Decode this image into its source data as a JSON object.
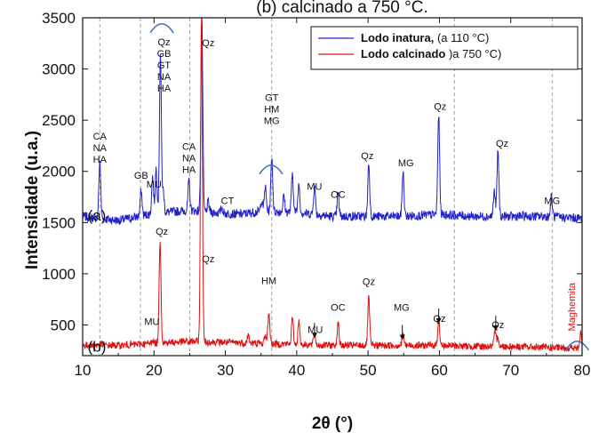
{
  "chart_data": {
    "type": "line",
    "title": "(b) calcinado a  750 °C.",
    "xlabel": "2θ (°)",
    "ylabel": "Intensidade (u.a.)",
    "xlim": [
      10,
      80
    ],
    "ylim": [
      200,
      3500
    ],
    "xticks": [
      10,
      20,
      30,
      40,
      50,
      60,
      70,
      80
    ],
    "yticks": [
      500,
      1000,
      1500,
      2000,
      2500,
      3000,
      3500
    ],
    "grid": false,
    "legend_position": "top-right",
    "colors": {
      "natura": "#2222cc",
      "calcinado": "#dd1111",
      "arc": "#3b6fc4",
      "ref": "#999999"
    },
    "reference_lines_x": [
      12.4,
      18.1,
      25.0,
      36.5,
      62.1,
      75.8
    ],
    "series": [
      {
        "name": "Lodo inatura, (a 110 °C)",
        "legend_bold": "Lodo inatura,",
        "legend_rest": " (a 110 °C)",
        "color": "#2222cc",
        "baseline": [
          [
            10,
            1560
          ],
          [
            15,
            1520
          ],
          [
            20,
            1590
          ],
          [
            25,
            1620
          ],
          [
            28,
            1600
          ],
          [
            32,
            1580
          ],
          [
            35,
            1610
          ],
          [
            40,
            1600
          ],
          [
            45,
            1560
          ],
          [
            50,
            1560
          ],
          [
            55,
            1560
          ],
          [
            60,
            1580
          ],
          [
            65,
            1560
          ],
          [
            70,
            1560
          ],
          [
            75,
            1560
          ],
          [
            80,
            1540
          ]
        ],
        "peaks": [
          [
            12.4,
            2100
          ],
          [
            18.2,
            1810
          ],
          [
            19.8,
            1950
          ],
          [
            20.3,
            2030
          ],
          [
            20.9,
            3150
          ],
          [
            21.3,
            1800
          ],
          [
            24.9,
            1900
          ],
          [
            26.7,
            3500
          ],
          [
            27.6,
            1700
          ],
          [
            29.5,
            1650
          ],
          [
            35.1,
            1720
          ],
          [
            35.6,
            1850
          ],
          [
            36.5,
            2150
          ],
          [
            38.2,
            1760
          ],
          [
            39.4,
            1980
          ],
          [
            40.3,
            1880
          ],
          [
            42.5,
            1860
          ],
          [
            45.8,
            1780
          ],
          [
            50.1,
            2080
          ],
          [
            54.9,
            2000
          ],
          [
            59.9,
            2560
          ],
          [
            67.7,
            1800
          ],
          [
            68.2,
            2200
          ],
          [
            75.7,
            1750
          ]
        ]
      },
      {
        "name": "Lodo calcinado )a 750 °C)",
        "legend_bold": "Lodo calcinado",
        "legend_rest": " )a 750 °C)",
        "color": "#dd1111",
        "baseline": [
          [
            10,
            300
          ],
          [
            15,
            300
          ],
          [
            20,
            320
          ],
          [
            25,
            340
          ],
          [
            30,
            330
          ],
          [
            35,
            320
          ],
          [
            40,
            310
          ],
          [
            45,
            300
          ],
          [
            50,
            300
          ],
          [
            55,
            300
          ],
          [
            60,
            300
          ],
          [
            65,
            290
          ],
          [
            70,
            290
          ],
          [
            75,
            280
          ],
          [
            80,
            270
          ]
        ],
        "peaks": [
          [
            12.4,
            320
          ],
          [
            19.8,
            360
          ],
          [
            20.85,
            1340
          ],
          [
            24.9,
            330
          ],
          [
            26.65,
            3500
          ],
          [
            27.5,
            330
          ],
          [
            33.2,
            400
          ],
          [
            35.6,
            400
          ],
          [
            36.1,
            620
          ],
          [
            39.4,
            570
          ],
          [
            40.3,
            540
          ],
          [
            42.5,
            420
          ],
          [
            45.8,
            520
          ],
          [
            50.1,
            760
          ],
          [
            54.9,
            420
          ],
          [
            59.9,
            560
          ],
          [
            67.8,
            430
          ],
          [
            68.2,
            390
          ],
          [
            79.8,
            420
          ]
        ]
      }
    ],
    "annotations": [
      {
        "lines": [
          "CA",
          "NA",
          "HA"
        ],
        "x": 12.4,
        "y": 2310
      },
      {
        "lines": [
          "GB"
        ],
        "x": 18.2,
        "y": 1930
      },
      {
        "lines": [
          "MU"
        ],
        "x": 20.0,
        "y": 1840
      },
      {
        "lines": [
          "Qz",
          "GB",
          "GT",
          "NA",
          "HA"
        ],
        "x": 21.4,
        "y": 3230
      },
      {
        "lines": [
          "CA",
          "NA",
          "HA"
        ],
        "x": 24.9,
        "y": 2210
      },
      {
        "lines": [
          "Qz"
        ],
        "x": 27.6,
        "y": 3220
      },
      {
        "lines": [
          "CT"
        ],
        "x": 30.3,
        "y": 1680
      },
      {
        "lines": [
          "GT",
          "HM",
          "MG"
        ],
        "x": 36.5,
        "y": 2690
      },
      {
        "lines": [
          "MU"
        ],
        "x": 42.5,
        "y": 1820
      },
      {
        "lines": [
          "OC"
        ],
        "x": 45.8,
        "y": 1740
      },
      {
        "lines": [
          "Qz"
        ],
        "x": 49.9,
        "y": 2120
      },
      {
        "lines": [
          "MG"
        ],
        "x": 55.3,
        "y": 2050
      },
      {
        "lines": [
          "Qz"
        ],
        "x": 60.1,
        "y": 2600
      },
      {
        "lines": [
          "Qz"
        ],
        "x": 68.8,
        "y": 2240
      },
      {
        "lines": [
          "MG"
        ],
        "x": 75.8,
        "y": 1680
      },
      {
        "lines": [
          "Qz"
        ],
        "x": 21.1,
        "y": 1380
      },
      {
        "lines": [
          "Qz"
        ],
        "x": 27.6,
        "y": 1110
      },
      {
        "lines": [
          "MU"
        ],
        "x": 19.7,
        "y": 500
      },
      {
        "lines": [
          "HM"
        ],
        "x": 36.1,
        "y": 900
      },
      {
        "lines": [
          "OC"
        ],
        "x": 45.8,
        "y": 640
      },
      {
        "lines": [
          "MU"
        ],
        "x": 42.6,
        "y": 420
      },
      {
        "lines": [
          "Qz"
        ],
        "x": 50.1,
        "y": 890
      },
      {
        "lines": [
          "MG"
        ],
        "x": 54.7,
        "y": 640
      },
      {
        "lines": [
          "Qz"
        ],
        "x": 60.0,
        "y": 530
      },
      {
        "lines": [
          "Qz"
        ],
        "x": 68.2,
        "y": 470
      }
    ],
    "arrows": [
      [
        42.5,
        520
      ],
      [
        54.8,
        500
      ],
      [
        59.9,
        660
      ],
      [
        67.9,
        590
      ]
    ],
    "arcs": [
      [
        21.1,
        3440
      ],
      [
        36.4,
        2060
      ],
      [
        79.3,
        340
      ]
    ],
    "side_labels": [
      {
        "text": "(a)",
        "x": 10.7,
        "y": 1520
      },
      {
        "text": "(b)",
        "x": 10.7,
        "y": 240
      }
    ],
    "vertical_label": {
      "text": "Maghemita",
      "x": 79.0,
      "y": 440,
      "color": "#dd1111"
    }
  }
}
